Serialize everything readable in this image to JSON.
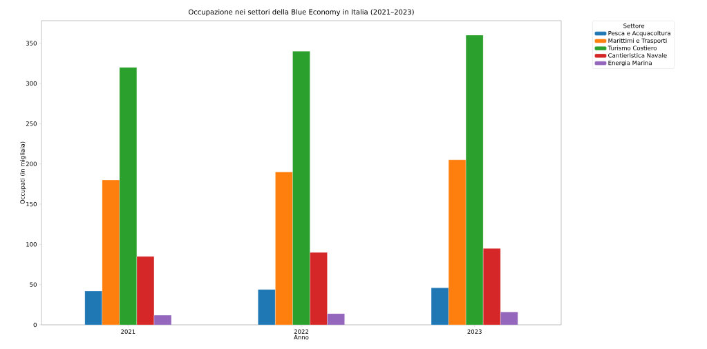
{
  "chart_data": {
    "type": "bar",
    "title": "Occupazione nei settori della Blue Economy in Italia (2021–2023)",
    "xlabel": "Anno",
    "ylabel": "Occupati (in migliaia)",
    "legend_title": "Settore",
    "legend": "top right",
    "grid": false,
    "categories": [
      "2021",
      "2022",
      "2023"
    ],
    "ylim": [
      0,
      378
    ],
    "yticks": [
      0,
      50,
      100,
      150,
      200,
      250,
      300,
      350
    ],
    "series": [
      {
        "name": "Pesca e Acquacoltura",
        "color": "#1f77b4",
        "values": [
          42,
          44,
          46
        ]
      },
      {
        "name": "Marittimi e Trasporti",
        "color": "#ff7f0e",
        "values": [
          180,
          190,
          205
        ]
      },
      {
        "name": "Turismo Costiero",
        "color": "#2ca02c",
        "values": [
          320,
          340,
          360
        ]
      },
      {
        "name": "Cantieristica Navale",
        "color": "#d62728",
        "values": [
          85,
          90,
          95
        ]
      },
      {
        "name": "Energia Marina",
        "color": "#9467bd",
        "values": [
          12,
          14,
          16
        ]
      }
    ]
  }
}
